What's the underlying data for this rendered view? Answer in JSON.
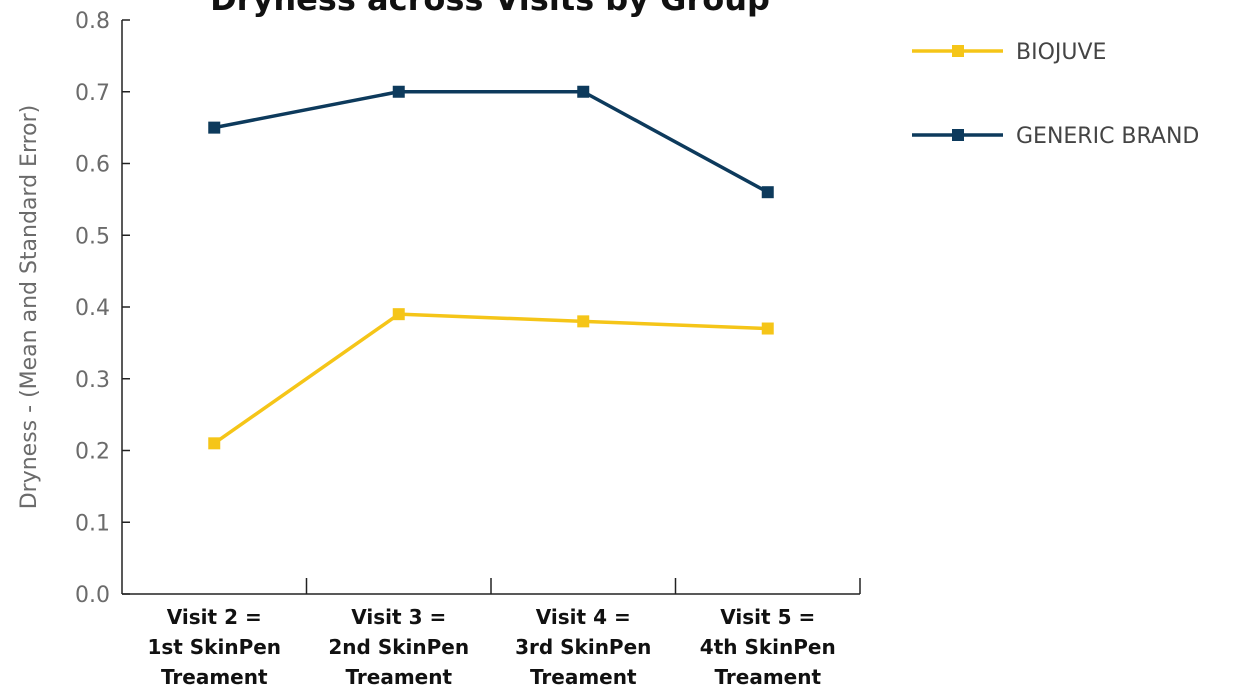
{
  "chart_data": {
    "type": "line",
    "title": "Dryness across Visits by Group",
    "xlabel": "",
    "ylabel": "Dryness - (Mean and Standard Error)",
    "ylim": [
      0,
      0.8
    ],
    "yticks": [
      "0.0",
      "0.1",
      "0.2",
      "0.3",
      "0.4",
      "0.5",
      "0.6",
      "0.7",
      "0.8"
    ],
    "categories": [
      [
        "Visit 2 =",
        "1st SkinPen",
        "Treament"
      ],
      [
        "Visit 3 =",
        "2nd SkinPen",
        "Treament"
      ],
      [
        "Visit 4 =",
        "3rd SkinPen",
        "Treament"
      ],
      [
        "Visit 5 =",
        "4th SkinPen",
        "Treament"
      ]
    ],
    "series": [
      {
        "name": "BIOJUVE",
        "color": "#f5c518",
        "values": [
          0.21,
          0.39,
          0.38,
          0.37
        ]
      },
      {
        "name": "GENERIC BRAND",
        "color": "#0d3a5c",
        "values": [
          0.65,
          0.7,
          0.7,
          0.56
        ]
      }
    ],
    "legend_position": "right",
    "grid": false
  }
}
